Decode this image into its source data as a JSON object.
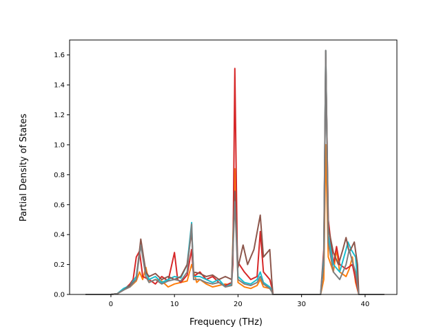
{
  "chart_data": {
    "type": "line",
    "title": "",
    "xlabel": "Frequency (THz)",
    "ylabel": "Partial Density of States",
    "xlim": [
      -6.5,
      45
    ],
    "ylim": [
      0.0,
      1.7
    ],
    "xticks": [
      0,
      10,
      20,
      30,
      40
    ],
    "yticks": [
      0.0,
      0.2,
      0.4,
      0.6,
      0.8,
      1.0,
      1.2,
      1.4,
      1.6
    ],
    "ytick_labels": [
      "0.0",
      "0.2",
      "0.4",
      "0.6",
      "0.8",
      "1.0",
      "1.2",
      "1.4",
      "1.6"
    ],
    "grid": false,
    "legend": "none",
    "series": [
      {
        "color": "#ff7f0e",
        "x": [
          -4,
          0,
          1,
          2,
          3,
          4,
          4.5,
          5,
          5.5,
          6,
          7,
          8,
          9,
          10,
          11,
          12,
          12.7,
          13.5,
          14,
          15,
          16,
          17,
          18,
          19,
          19.5,
          20,
          21,
          22,
          23,
          23.5,
          24,
          25,
          25.3,
          25.5,
          33,
          33.5,
          33.8,
          34.2,
          35,
          35.5,
          36,
          37,
          37.5,
          38,
          38.5,
          39,
          43
        ],
        "y": [
          0,
          0,
          0.005,
          0.03,
          0.05,
          0.09,
          0.15,
          0.1,
          0.18,
          0.08,
          0.1,
          0.09,
          0.05,
          0.07,
          0.08,
          0.09,
          0.2,
          0.08,
          0.1,
          0.07,
          0.05,
          0.06,
          0.07,
          0.06,
          0.84,
          0.08,
          0.05,
          0.04,
          0.06,
          0.1,
          0.05,
          0.04,
          0.02,
          0,
          0,
          0.1,
          1.0,
          0.25,
          0.15,
          0.3,
          0.15,
          0.12,
          0.17,
          0.25,
          0.08,
          0,
          0
        ]
      },
      {
        "color": "#d62728",
        "x": [
          -4,
          0,
          1,
          2,
          3,
          3.5,
          4,
          4.5,
          5,
          6,
          7,
          8,
          9,
          10,
          10.5,
          11,
          12,
          12.7,
          13,
          14,
          15,
          16,
          17,
          18,
          19,
          19.2,
          19.5,
          19.9,
          21,
          22,
          23,
          23.5,
          24,
          25,
          25.3,
          25.5,
          33,
          33.5,
          33.8,
          34.2,
          35,
          35.5,
          36,
          37,
          38,
          38.5,
          39,
          43
        ],
        "y": [
          0,
          0,
          0.005,
          0.03,
          0.07,
          0.1,
          0.25,
          0.29,
          0.12,
          0.1,
          0.07,
          0.12,
          0.09,
          0.28,
          0.1,
          0.08,
          0.13,
          0.3,
          0.12,
          0.15,
          0.1,
          0.12,
          0.08,
          0.06,
          0.08,
          0.2,
          1.51,
          0.22,
          0.15,
          0.1,
          0.12,
          0.42,
          0.15,
          0.1,
          0.05,
          0,
          0,
          0.3,
          1.58,
          0.5,
          0.2,
          0.32,
          0.2,
          0.17,
          0.2,
          0.1,
          0,
          0
        ]
      },
      {
        "color": "#17becf",
        "x": [
          -4,
          0,
          1,
          2,
          3,
          4,
          4.7,
          5.5,
          6,
          7,
          8,
          9,
          10,
          11,
          12,
          12.7,
          13,
          14,
          15,
          16,
          17,
          18,
          19,
          19.5,
          20,
          21,
          22,
          23,
          23.5,
          24,
          25,
          25.3,
          25.5,
          33,
          33.5,
          33.8,
          34.2,
          35,
          36,
          37,
          37.3,
          37.8,
          38.5,
          39,
          43
        ],
        "y": [
          0,
          0,
          0.005,
          0.04,
          0.06,
          0.12,
          0.35,
          0.15,
          0.1,
          0.12,
          0.08,
          0.1,
          0.12,
          0.11,
          0.2,
          0.48,
          0.12,
          0.12,
          0.1,
          0.08,
          0.1,
          0.05,
          0.07,
          0.68,
          0.12,
          0.08,
          0.07,
          0.1,
          0.15,
          0.08,
          0.05,
          0.03,
          0,
          0,
          0.25,
          1.63,
          0.4,
          0.2,
          0.15,
          0.3,
          0.35,
          0.3,
          0.25,
          0,
          0
        ]
      },
      {
        "color": "#8c564b",
        "x": [
          -4,
          0,
          1,
          2,
          3,
          4,
          4.7,
          5.5,
          6,
          7,
          8,
          9,
          10,
          11,
          12,
          12.7,
          13,
          14,
          15,
          16,
          17,
          18,
          19,
          19.5,
          20,
          20.8,
          21.5,
          22.5,
          23.5,
          24,
          25,
          25.3,
          25.5,
          33,
          33.5,
          33.8,
          34.2,
          35,
          35.8,
          36.5,
          37,
          37.5,
          38.3,
          38.8,
          39,
          43
        ],
        "y": [
          0,
          0,
          0.005,
          0.03,
          0.06,
          0.1,
          0.37,
          0.15,
          0.12,
          0.14,
          0.1,
          0.12,
          0.1,
          0.12,
          0.2,
          0.42,
          0.15,
          0.14,
          0.12,
          0.13,
          0.1,
          0.12,
          0.1,
          0.69,
          0.18,
          0.33,
          0.2,
          0.3,
          0.53,
          0.25,
          0.3,
          0.1,
          0,
          0,
          0.2,
          1.63,
          0.45,
          0.28,
          0.2,
          0.3,
          0.38,
          0.28,
          0.35,
          0.2,
          0,
          0
        ]
      },
      {
        "color": "#7f7f7f",
        "x": [
          -4,
          0,
          1,
          2,
          3,
          4,
          4.7,
          5.5,
          6,
          7,
          8,
          9,
          10,
          11,
          12,
          12.7,
          13,
          14,
          15,
          16,
          17,
          18,
          19,
          19.5,
          20,
          21,
          22,
          23,
          23.5,
          24,
          25,
          25.3,
          25.5,
          33,
          33.5,
          33.8,
          34.2,
          35,
          36,
          37,
          37.5,
          38,
          38.5,
          39,
          43
        ],
        "y": [
          0,
          0,
          0.005,
          0.03,
          0.05,
          0.1,
          0.33,
          0.12,
          0.08,
          0.1,
          0.07,
          0.09,
          0.1,
          0.09,
          0.15,
          0.47,
          0.1,
          0.1,
          0.08,
          0.07,
          0.08,
          0.05,
          0.06,
          0.62,
          0.1,
          0.07,
          0.06,
          0.08,
          0.12,
          0.07,
          0.04,
          0.02,
          0,
          0,
          0.2,
          1.63,
          0.35,
          0.15,
          0.1,
          0.2,
          0.3,
          0.22,
          0.15,
          0,
          0
        ]
      }
    ]
  }
}
